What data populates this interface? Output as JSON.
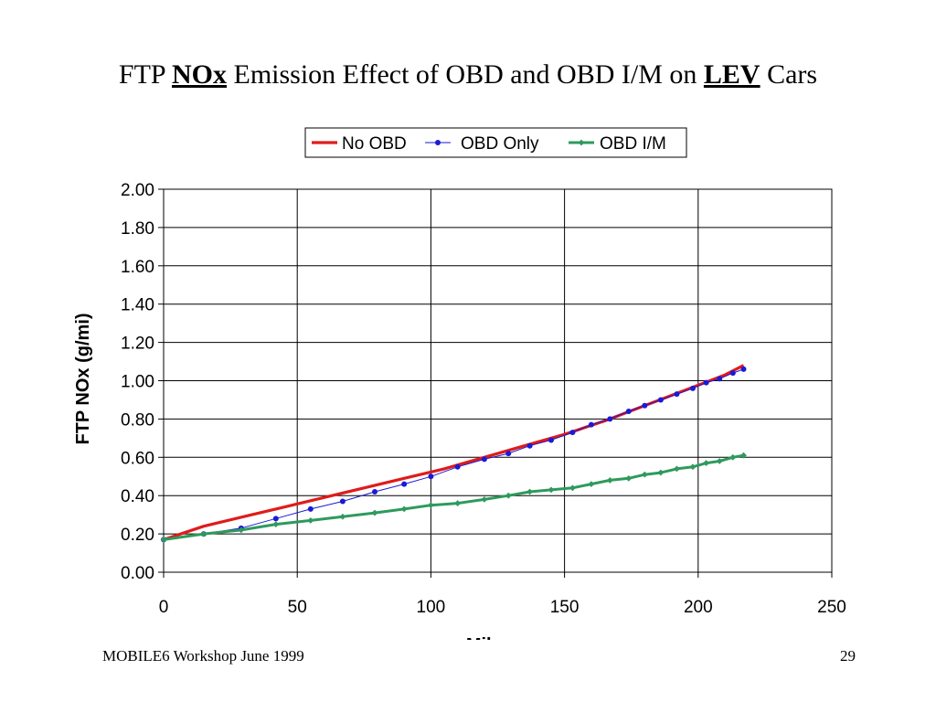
{
  "slide": {
    "title_part1": "FTP ",
    "title_part2": "NOx",
    "title_part3": " Emission Effect of OBD and OBD I/M on ",
    "title_part4": "LEV",
    "title_part5": " Cars",
    "footer_left": "MOBILE6 Workshop June 1999",
    "page_number": "29"
  },
  "chart_data": {
    "type": "line",
    "title": "",
    "xlabel": "Mileage",
    "ylabel": "FTP NOx (g/mi)",
    "xlim": [
      0,
      250
    ],
    "ylim": [
      0,
      2.0
    ],
    "xticks": [
      0,
      50,
      100,
      150,
      200,
      250
    ],
    "yticks": [
      0.0,
      0.2,
      0.4,
      0.6,
      0.8,
      1.0,
      1.2,
      1.4,
      1.6,
      1.8,
      2.0
    ],
    "ytick_labels": [
      "0.00",
      "0.20",
      "0.40",
      "0.60",
      "0.80",
      "1.00",
      "1.20",
      "1.40",
      "1.60",
      "1.80",
      "2.00"
    ],
    "xtick_labels": [
      "0",
      "50",
      "100",
      "150",
      "200",
      "250"
    ],
    "grid": "major both axes",
    "legend_position": "top",
    "series": [
      {
        "name": "No OBD",
        "color": "#e01b1b",
        "marker": "none",
        "x": [
          0,
          15,
          30,
          45,
          60,
          75,
          90,
          105,
          120,
          135,
          150,
          165,
          180,
          195,
          210,
          217
        ],
        "y": [
          0.17,
          0.24,
          0.29,
          0.34,
          0.39,
          0.44,
          0.49,
          0.54,
          0.6,
          0.66,
          0.72,
          0.79,
          0.87,
          0.95,
          1.03,
          1.08
        ]
      },
      {
        "name": "OBD Only",
        "color": "#1a1ad6",
        "marker": "dot",
        "x": [
          0,
          15,
          29,
          42,
          55,
          67,
          79,
          90,
          100,
          110,
          120,
          129,
          137,
          145,
          153,
          160,
          167,
          174,
          180,
          186,
          192,
          198,
          203,
          208,
          213,
          217
        ],
        "y": [
          0.17,
          0.2,
          0.23,
          0.28,
          0.33,
          0.37,
          0.42,
          0.46,
          0.5,
          0.55,
          0.59,
          0.62,
          0.66,
          0.69,
          0.73,
          0.77,
          0.8,
          0.84,
          0.87,
          0.9,
          0.93,
          0.96,
          0.99,
          1.01,
          1.04,
          1.06
        ]
      },
      {
        "name": "OBD I/M",
        "color": "#2e9a5c",
        "marker": "diamond",
        "x": [
          0,
          15,
          29,
          42,
          55,
          67,
          79,
          90,
          100,
          110,
          120,
          129,
          137,
          145,
          153,
          160,
          167,
          174,
          180,
          186,
          192,
          198,
          203,
          208,
          213,
          217
        ],
        "y": [
          0.17,
          0.2,
          0.22,
          0.25,
          0.27,
          0.29,
          0.31,
          0.33,
          0.35,
          0.36,
          0.38,
          0.4,
          0.42,
          0.43,
          0.44,
          0.46,
          0.48,
          0.49,
          0.51,
          0.52,
          0.54,
          0.55,
          0.57,
          0.58,
          0.6,
          0.61
        ]
      }
    ]
  }
}
